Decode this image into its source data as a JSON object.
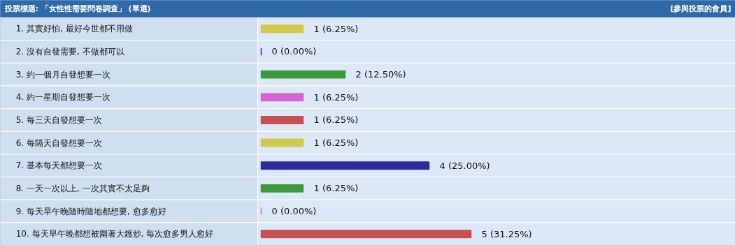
{
  "chart_data": {
    "type": "bar",
    "orientation": "horizontal",
    "title": "投票標題: 「女性性需要問卷調查」 (單選)",
    "annotations": [
      "[參與投票的會員]"
    ],
    "categories": [
      "1. 其實好怕, 最好今世都不用做",
      "2. 沒有自發需要, 不做都可以",
      "3. 約一個月自發想要一次",
      "4. 約一星期自發想要一次",
      "5. 每三天自發想要一次",
      "6. 每隔天自發想要一次",
      "7. 基本每天都想要一次",
      "8. 一天一次以上, 一次其實不太足夠",
      "9. 每天早午晚隨時隨地都想要, 愈多愈好",
      "10. 每天早午晚都想被圍著大鑊炒, 每次愈多男人愈好"
    ],
    "values": [
      1,
      0,
      2,
      1,
      1,
      1,
      4,
      1,
      0,
      5
    ],
    "colors": [
      "#d2c84a",
      "#2c2c9c",
      "#3c9a3c",
      "#d464d4",
      "#c85050",
      "#d2c84a",
      "#2c2c9c",
      "#3c9a3c",
      "#d464d4",
      "#c85050"
    ],
    "value_labels": [
      "1 (6.25%)",
      "0 (0.00%)",
      "2 (12.50%)",
      "1 (6.25%)",
      "1 (6.25%)",
      "1 (6.25%)",
      "4 (25.00%)",
      "1 (6.25%)",
      "0 (0.00%)",
      "5 (31.25%)"
    ],
    "grid": false
  }
}
